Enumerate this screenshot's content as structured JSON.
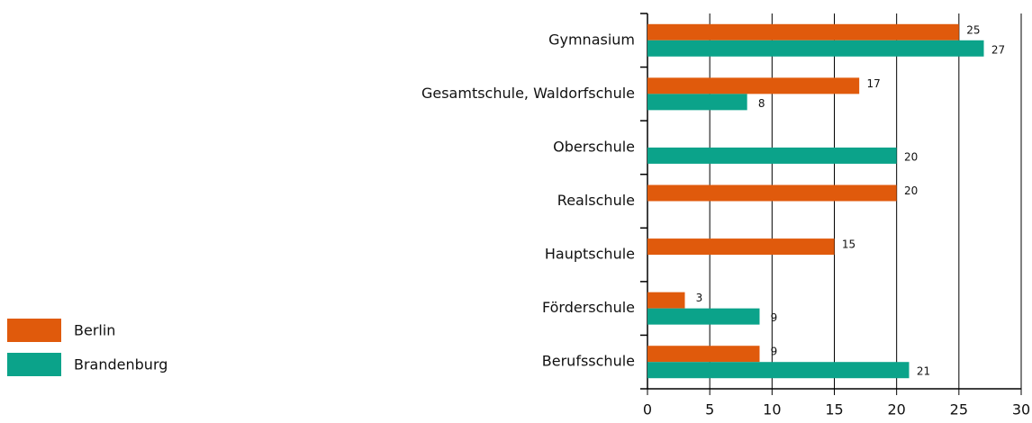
{
  "chart_data": {
    "type": "hbar",
    "categories": [
      "Gymnasium",
      "Gesamtschule, Waldorfschule",
      "Oberschule",
      "Realschule",
      "Hauptschule",
      "Förderschule",
      "Berufsschule"
    ],
    "series": [
      {
        "name": "Berlin",
        "color": "#e05a0c",
        "values": [
          25,
          17,
          null,
          20,
          15,
          3,
          9
        ]
      },
      {
        "name": "Brandenburg",
        "color": "#0ba38a",
        "values": [
          27,
          8,
          20,
          null,
          null,
          9,
          21
        ]
      }
    ],
    "xlim": [
      0,
      30
    ],
    "xticks": [
      0,
      5,
      10,
      15,
      20,
      25,
      30
    ],
    "grid": true,
    "legend": "left"
  }
}
